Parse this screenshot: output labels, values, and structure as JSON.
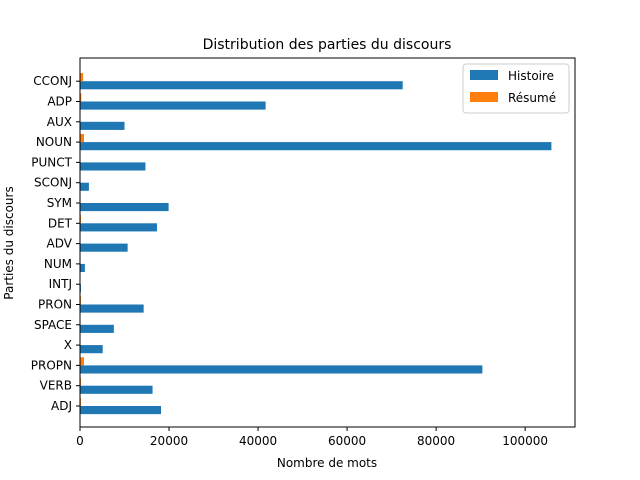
{
  "chart_data": {
    "type": "bar",
    "orientation": "horizontal",
    "title": "Distribution des parties du discours",
    "xlabel": "Nombre de mots",
    "ylabel": "Parties du discours",
    "categories": [
      "ADJ",
      "VERB",
      "PROPN",
      "X",
      "SPACE",
      "PRON",
      "INTJ",
      "NUM",
      "ADV",
      "DET",
      "SYM",
      "SCONJ",
      "PUNCT",
      "NOUN",
      "AUX",
      "ADP",
      "CCONJ"
    ],
    "series": [
      {
        "name": "Histoire",
        "color": "#1f77b4",
        "values": [
          18200,
          16300,
          90400,
          5100,
          7600,
          14300,
          200,
          1100,
          10700,
          17300,
          19900,
          2000,
          14700,
          105900,
          10000,
          41700,
          72500
        ]
      },
      {
        "name": "Résumé",
        "color": "#ff7f0e",
        "values": [
          200,
          200,
          900,
          0,
          0,
          200,
          0,
          0,
          100,
          200,
          0,
          0,
          100,
          900,
          100,
          300,
          700
        ]
      }
    ],
    "xlim": [
      0,
      111200
    ],
    "xticks": [
      0,
      20000,
      40000,
      60000,
      80000,
      100000
    ],
    "xtick_labels": [
      "0",
      "20000",
      "40000",
      "60000",
      "80000",
      "100000"
    ],
    "grid": false,
    "legend_position": "top-right"
  }
}
